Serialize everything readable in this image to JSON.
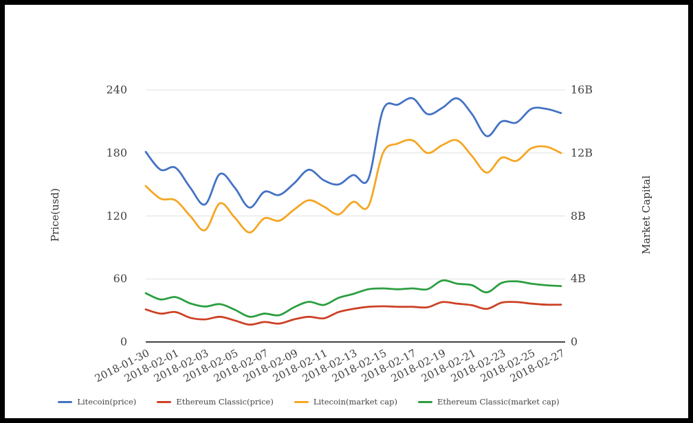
{
  "chart_data": {
    "type": "line",
    "x": [
      "2018-01-30",
      "2018-01-31",
      "2018-02-01",
      "2018-02-02",
      "2018-02-03",
      "2018-02-04",
      "2018-02-05",
      "2018-02-06",
      "2018-02-07",
      "2018-02-08",
      "2018-02-09",
      "2018-02-10",
      "2018-02-11",
      "2018-02-12",
      "2018-02-13",
      "2018-02-14",
      "2018-02-15",
      "2018-02-16",
      "2018-02-17",
      "2018-02-18",
      "2018-02-19",
      "2018-02-20",
      "2018-02-21",
      "2018-02-22",
      "2018-02-23",
      "2018-02-24",
      "2018-02-25",
      "2018-02-26",
      "2018-02-27"
    ],
    "x_tick_every": 2,
    "series": [
      {
        "name": "Litecoin(price)",
        "axis": "left",
        "color": "#4472c4",
        "values": [
          181,
          164,
          166,
          147,
          131,
          160,
          147,
          128,
          143,
          140,
          151,
          164,
          154,
          150,
          159,
          155,
          221,
          226,
          232,
          217,
          223,
          232,
          217,
          196,
          210,
          209,
          222,
          222,
          218
        ]
      },
      {
        "name": "Ethereum Classic(price)",
        "axis": "left",
        "color": "#cc4125",
        "values": [
          31,
          27,
          28.5,
          23,
          21.5,
          24,
          20.5,
          16.5,
          19,
          17.5,
          21.5,
          24,
          22.5,
          28.5,
          31.5,
          33.5,
          34,
          33.5,
          33.5,
          33,
          38,
          36.5,
          35,
          31.5,
          37.5,
          38,
          36.5,
          35.5,
          35.5
        ]
      },
      {
        "name": "Litecoin(market cap)",
        "axis": "right",
        "color": "#f5a623",
        "values": [
          9.9,
          9.1,
          9.0,
          8.0,
          7.1,
          8.8,
          7.9,
          6.95,
          7.85,
          7.7,
          8.4,
          9.0,
          8.6,
          8.1,
          8.9,
          8.6,
          12.0,
          12.6,
          12.8,
          12.0,
          12.5,
          12.8,
          11.8,
          10.75,
          11.7,
          11.5,
          12.3,
          12.4,
          12.0
        ]
      },
      {
        "name": "Ethereum Classic(market cap)",
        "axis": "right",
        "color": "#2b9e40",
        "values": [
          3.1,
          2.7,
          2.85,
          2.45,
          2.25,
          2.4,
          2.05,
          1.6,
          1.8,
          1.7,
          2.2,
          2.55,
          2.35,
          2.8,
          3.05,
          3.35,
          3.4,
          3.35,
          3.4,
          3.35,
          3.9,
          3.7,
          3.6,
          3.15,
          3.75,
          3.85,
          3.7,
          3.6,
          3.55
        ]
      }
    ],
    "left_axis": {
      "label": "Price(usd)",
      "min": 0,
      "max": 240,
      "ticks": [
        "0",
        "60",
        "120",
        "180",
        "240"
      ]
    },
    "right_axis": {
      "label": "Market Capital",
      "min": 0,
      "max": 16,
      "ticks": [
        "0",
        "4B",
        "8B",
        "12B",
        "16B"
      ]
    },
    "grid": true,
    "legend_position": "bottom",
    "colors": {
      "gridline": "#e0e0e0",
      "axis_line": "#424242",
      "tick_text": "#424242"
    }
  }
}
